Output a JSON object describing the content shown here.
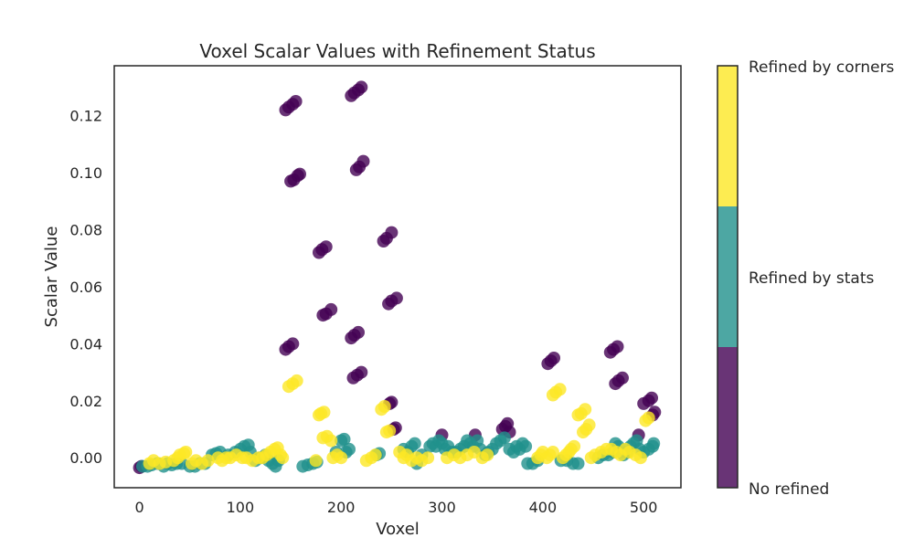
{
  "chart_data": {
    "type": "scatter",
    "title": "Voxel Scalar Values with Refinement Status",
    "xlabel": "Voxel",
    "ylabel": "Scalar Value",
    "xlim": [
      -25,
      537
    ],
    "ylim": [
      -0.0105,
      0.1375
    ],
    "x_ticks": [
      0,
      100,
      200,
      300,
      400,
      500
    ],
    "y_ticks": [
      0.0,
      0.02,
      0.04,
      0.06,
      0.08,
      0.1,
      0.12
    ],
    "grid": false,
    "colorbar": {
      "placement": "right",
      "labels": [
        "No refined",
        "Refined by stats",
        "Refined by corners"
      ],
      "colors": [
        "#440154",
        "#21918c",
        "#fde725"
      ]
    },
    "series": [
      {
        "status": 0,
        "color": "#440154",
        "points": [
          [
            0,
            -0.0035
          ],
          [
            2,
            -0.003
          ],
          [
            145,
            0.122
          ],
          [
            148,
            0.123
          ],
          [
            152,
            0.124
          ],
          [
            155,
            0.125
          ],
          [
            150,
            0.097
          ],
          [
            153,
            0.0975
          ],
          [
            157,
            0.099
          ],
          [
            159,
            0.0995
          ],
          [
            145,
            0.038
          ],
          [
            148,
            0.039
          ],
          [
            152,
            0.04
          ],
          [
            178,
            0.072
          ],
          [
            181,
            0.073
          ],
          [
            185,
            0.074
          ],
          [
            182,
            0.05
          ],
          [
            185,
            0.0505
          ],
          [
            190,
            0.052
          ],
          [
            210,
            0.127
          ],
          [
            213,
            0.128
          ],
          [
            217,
            0.129
          ],
          [
            220,
            0.13
          ],
          [
            215,
            0.101
          ],
          [
            218,
            0.102
          ],
          [
            222,
            0.104
          ],
          [
            210,
            0.042
          ],
          [
            213,
            0.043
          ],
          [
            217,
            0.044
          ],
          [
            212,
            0.028
          ],
          [
            216,
            0.029
          ],
          [
            220,
            0.03
          ],
          [
            242,
            0.076
          ],
          [
            245,
            0.077
          ],
          [
            250,
            0.079
          ],
          [
            247,
            0.054
          ],
          [
            250,
            0.055
          ],
          [
            255,
            0.056
          ],
          [
            248,
            0.019
          ],
          [
            250,
            0.0195
          ],
          [
            252,
            0.01
          ],
          [
            254,
            0.0105
          ],
          [
            300,
            0.008
          ],
          [
            333,
            0.008
          ],
          [
            360,
            0.01
          ],
          [
            363,
            0.011
          ],
          [
            365,
            0.012
          ],
          [
            367,
            0.009
          ],
          [
            405,
            0.033
          ],
          [
            408,
            0.034
          ],
          [
            411,
            0.035
          ],
          [
            467,
            0.037
          ],
          [
            470,
            0.038
          ],
          [
            474,
            0.039
          ],
          [
            472,
            0.026
          ],
          [
            475,
            0.027
          ],
          [
            479,
            0.028
          ],
          [
            495,
            0.008
          ],
          [
            500,
            0.019
          ],
          [
            505,
            0.02
          ],
          [
            508,
            0.021
          ],
          [
            509,
            0.015
          ],
          [
            511,
            0.016
          ]
        ]
      },
      {
        "status": 1,
        "color": "#21918c",
        "points": [
          [
            3,
            -0.003
          ],
          [
            8,
            -0.003
          ],
          [
            12,
            -0.0025
          ],
          [
            18,
            -0.002
          ],
          [
            24,
            -0.003
          ],
          [
            28,
            -0.002
          ],
          [
            32,
            -0.0025
          ],
          [
            37,
            -0.002
          ],
          [
            42,
            -0.002
          ],
          [
            50,
            -0.003
          ],
          [
            55,
            -0.003
          ],
          [
            60,
            -0.002
          ],
          [
            65,
            -0.002
          ],
          [
            72,
            0.001
          ],
          [
            76,
            0.0015
          ],
          [
            80,
            0.002
          ],
          [
            88,
            0.001
          ],
          [
            95,
            0.002
          ],
          [
            100,
            0.003
          ],
          [
            104,
            0.004
          ],
          [
            108,
            0.0045
          ],
          [
            110,
            0.002
          ],
          [
            115,
            -0.001
          ],
          [
            120,
            0.0
          ],
          [
            125,
            0.001
          ],
          [
            128,
            -0.001
          ],
          [
            132,
            -0.002
          ],
          [
            135,
            -0.003
          ],
          [
            138,
            -0.001
          ],
          [
            162,
            -0.003
          ],
          [
            167,
            -0.0025
          ],
          [
            172,
            -0.002
          ],
          [
            176,
            -0.0015
          ],
          [
            195,
            0.002
          ],
          [
            200,
            0.006
          ],
          [
            203,
            0.0065
          ],
          [
            205,
            0.002
          ],
          [
            208,
            0.003
          ],
          [
            235,
            0.001
          ],
          [
            238,
            0.0015
          ],
          [
            262,
            0.003
          ],
          [
            266,
            0.002
          ],
          [
            270,
            0.004
          ],
          [
            273,
            0.005
          ],
          [
            275,
            -0.002
          ],
          [
            280,
            0.001
          ],
          [
            288,
            0.004
          ],
          [
            291,
            0.005
          ],
          [
            294,
            0.004
          ],
          [
            297,
            0.006
          ],
          [
            300,
            0.005
          ],
          [
            303,
            0.003
          ],
          [
            306,
            0.004
          ],
          [
            310,
            0.002
          ],
          [
            314,
            0.002
          ],
          [
            318,
            0.003
          ],
          [
            322,
            0.004
          ],
          [
            325,
            0.006
          ],
          [
            328,
            0.005
          ],
          [
            331,
            0.004
          ],
          [
            335,
            0.006
          ],
          [
            338,
            0.003
          ],
          [
            343,
            0.001
          ],
          [
            346,
            0.002
          ],
          [
            350,
            0.003
          ],
          [
            354,
            0.005
          ],
          [
            358,
            0.006
          ],
          [
            362,
            0.007
          ],
          [
            367,
            0.003
          ],
          [
            371,
            0.002
          ],
          [
            374,
            0.004
          ],
          [
            377,
            0.003
          ],
          [
            380,
            0.005
          ],
          [
            383,
            0.004
          ],
          [
            385,
            -0.002
          ],
          [
            390,
            -0.002
          ],
          [
            395,
            -0.001
          ],
          [
            418,
            -0.001
          ],
          [
            424,
            -0.001
          ],
          [
            430,
            -0.002
          ],
          [
            435,
            -0.002
          ],
          [
            455,
            0.0
          ],
          [
            460,
            0.001
          ],
          [
            465,
            0.001
          ],
          [
            470,
            0.002
          ],
          [
            472,
            0.005
          ],
          [
            475,
            0.004
          ],
          [
            478,
            0.002
          ],
          [
            480,
            0.001
          ],
          [
            484,
            0.002
          ],
          [
            487,
            0.004
          ],
          [
            490,
            0.005
          ],
          [
            493,
            0.006
          ],
          [
            496,
            0.003
          ],
          [
            500,
            0.002
          ],
          [
            505,
            0.003
          ],
          [
            509,
            0.004
          ],
          [
            510,
            0.005
          ]
        ]
      },
      {
        "status": 2,
        "color": "#fde725",
        "points": [
          [
            10,
            -0.002
          ],
          [
            14,
            -0.001
          ],
          [
            20,
            -0.002
          ],
          [
            26,
            -0.0015
          ],
          [
            34,
            -0.001
          ],
          [
            38,
            0.0
          ],
          [
            40,
            0.001
          ],
          [
            44,
            0.0015
          ],
          [
            46,
            0.002
          ],
          [
            52,
            -0.002
          ],
          [
            56,
            -0.001
          ],
          [
            62,
            -0.002
          ],
          [
            68,
            -0.001
          ],
          [
            78,
            0.0
          ],
          [
            82,
            -0.001
          ],
          [
            86,
            0.0
          ],
          [
            90,
            0.0
          ],
          [
            96,
            0.001
          ],
          [
            102,
            0.0
          ],
          [
            106,
            0.0
          ],
          [
            112,
            -0.001
          ],
          [
            118,
            0.0
          ],
          [
            122,
            0.0
          ],
          [
            126,
            0.001
          ],
          [
            130,
            0.002
          ],
          [
            134,
            0.003
          ],
          [
            137,
            0.0035
          ],
          [
            140,
            0.001
          ],
          [
            142,
            0.0
          ],
          [
            148,
            0.025
          ],
          [
            152,
            0.026
          ],
          [
            156,
            0.027
          ],
          [
            175,
            -0.001
          ],
          [
            178,
            0.015
          ],
          [
            180,
            0.0155
          ],
          [
            183,
            0.016
          ],
          [
            182,
            0.007
          ],
          [
            186,
            0.0075
          ],
          [
            190,
            0.006
          ],
          [
            192,
            0.0
          ],
          [
            196,
            0.001
          ],
          [
            200,
            0.0
          ],
          [
            225,
            -0.001
          ],
          [
            230,
            0.0
          ],
          [
            234,
            0.001
          ],
          [
            240,
            0.017
          ],
          [
            243,
            0.018
          ],
          [
            245,
            0.009
          ],
          [
            248,
            0.0095
          ],
          [
            258,
            0.002
          ],
          [
            262,
            0.0
          ],
          [
            265,
            0.001
          ],
          [
            270,
            -0.001
          ],
          [
            275,
            0.0
          ],
          [
            280,
            -0.001
          ],
          [
            286,
            0.0
          ],
          [
            305,
            0.0
          ],
          [
            312,
            0.001
          ],
          [
            318,
            0.0
          ],
          [
            325,
            0.001
          ],
          [
            332,
            0.002
          ],
          [
            340,
            0.0
          ],
          [
            345,
            0.001
          ],
          [
            395,
            0.0
          ],
          [
            398,
            0.001
          ],
          [
            400,
            0.002
          ],
          [
            404,
            0.0
          ],
          [
            407,
            0.001
          ],
          [
            410,
            0.002
          ],
          [
            410,
            0.022
          ],
          [
            413,
            0.023
          ],
          [
            417,
            0.024
          ],
          [
            420,
            0.0
          ],
          [
            423,
            0.001
          ],
          [
            426,
            0.002
          ],
          [
            428,
            0.003
          ],
          [
            431,
            0.004
          ],
          [
            435,
            0.015
          ],
          [
            438,
            0.0155
          ],
          [
            442,
            0.017
          ],
          [
            440,
            0.009
          ],
          [
            443,
            0.01
          ],
          [
            446,
            0.0115
          ],
          [
            448,
            0.0
          ],
          [
            452,
            0.001
          ],
          [
            458,
            0.002
          ],
          [
            463,
            0.003
          ],
          [
            468,
            0.003
          ],
          [
            473,
            0.002
          ],
          [
            477,
            0.001
          ],
          [
            482,
            0.003
          ],
          [
            486,
            0.002
          ],
          [
            492,
            0.001
          ],
          [
            497,
            0.0
          ],
          [
            502,
            0.013
          ],
          [
            505,
            0.014
          ]
        ]
      }
    ]
  }
}
